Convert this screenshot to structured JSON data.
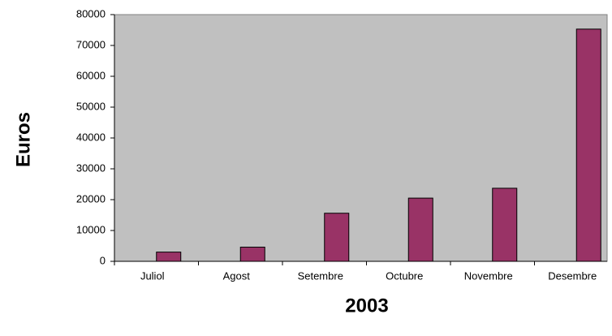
{
  "chart_data": {
    "type": "bar",
    "ylabel": "Euros",
    "xlabel": "2003",
    "categories": [
      "Juliol",
      "Agost",
      "Setembre",
      "Octubre",
      "Novembre",
      "Desembre"
    ],
    "values": [
      3000,
      4600,
      15600,
      20500,
      23700,
      75300
    ],
    "color": "#993366",
    "ylim": [
      0,
      80000
    ],
    "yticks": [
      0,
      10000,
      20000,
      30000,
      40000,
      50000,
      60000,
      70000,
      80000
    ],
    "grid": false
  }
}
